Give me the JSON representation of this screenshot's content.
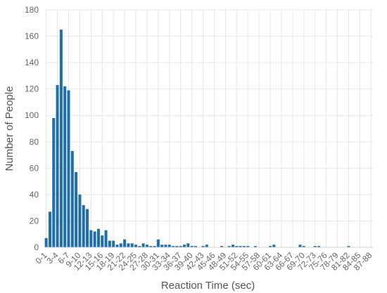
{
  "chart_data": {
    "type": "bar",
    "title": "",
    "xlabel": "Reaction Time (sec)",
    "ylabel": "Number of People",
    "ylim": [
      0,
      180
    ],
    "yticks": [
      0,
      20,
      40,
      60,
      80,
      100,
      120,
      140,
      160,
      180
    ],
    "grid": true,
    "colors": {
      "bar": "#1f6fad"
    },
    "categories": [
      "0-1",
      "1-2",
      "2-3",
      "3-4",
      "4-5",
      "5-6",
      "6-7",
      "7-8",
      "8-9",
      "9-10",
      "10-11",
      "11-12",
      "12-13",
      "13-14",
      "14-15",
      "15-16",
      "16-17",
      "17-18",
      "18-19",
      "19-20",
      "20-21",
      "21-22",
      "22-23",
      "23-24",
      "24-25",
      "25-26",
      "26-27",
      "27-28",
      "28-29",
      "29-30",
      "30-31",
      "31-32",
      "32-33",
      "33-34",
      "34-35",
      "35-36",
      "36-37",
      "37-38",
      "38-39",
      "39-40",
      "40-41",
      "41-42",
      "42-43",
      "43-44",
      "44-45",
      "45-46",
      "46-47",
      "47-48",
      "48-49",
      "49-50",
      "50-51",
      "51-52",
      "52-53",
      "53-54",
      "54-55",
      "55-56",
      "56-57",
      "57-58",
      "58-59",
      "59-60",
      "60-61",
      "61-62",
      "62-63",
      "63-64",
      "64-65",
      "65-66",
      "66-67",
      "67-68",
      "68-69",
      "69-70",
      "70-71",
      "71-72",
      "72-73",
      "73-74",
      "74-75",
      "75-76",
      "76-77",
      "77-78",
      "78-79",
      "79-80",
      "80-81",
      "81-82",
      "82-83",
      "83-84",
      "84-85",
      "85-86",
      "86-87",
      "87-88"
    ],
    "tick_labels": [
      "0-1",
      "3-4",
      "6-7",
      "9-10",
      "12-13",
      "15-16",
      "18-19",
      "21-22",
      "24-25",
      "27-28",
      "30-31",
      "33-34",
      "36-37",
      "39-40",
      "42-43",
      "45-46",
      "48-49",
      "51-52",
      "54-55",
      "57-58",
      "60-61",
      "63-64",
      "66-67",
      "69-70",
      "72-73",
      "75-76",
      "78-79",
      "81-82",
      "84-85",
      "87-88"
    ],
    "values": [
      7,
      27,
      98,
      123,
      165,
      122,
      119,
      73,
      57,
      40,
      32,
      29,
      13,
      12,
      14,
      9,
      13,
      5,
      5,
      2,
      3,
      6,
      3,
      3,
      2,
      1,
      3,
      2,
      1,
      1,
      6,
      2,
      2,
      2,
      1,
      1,
      1,
      2,
      3,
      1,
      1,
      0,
      1,
      2,
      0,
      0,
      0,
      1,
      0,
      1,
      2,
      1,
      1,
      1,
      1,
      0,
      1,
      0,
      0,
      0,
      1,
      2,
      0,
      0,
      0,
      0,
      0,
      0,
      2,
      1,
      0,
      0,
      1,
      1,
      0,
      0,
      0,
      0,
      0,
      0,
      0,
      1,
      0,
      0,
      0,
      0,
      0,
      0
    ]
  }
}
